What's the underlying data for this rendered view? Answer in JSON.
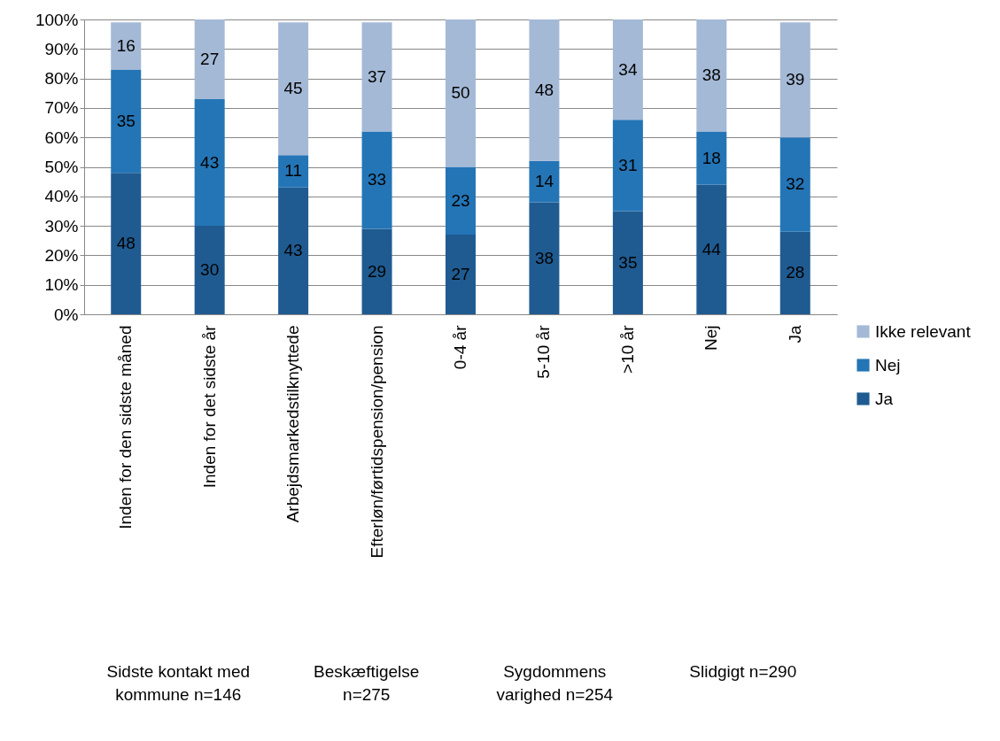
{
  "chart_data": {
    "type": "bar",
    "stacked": true,
    "data_labels": true,
    "grid": "y",
    "legend": "right",
    "categories": [
      "Inden for den sidste måned",
      "Inden for det  sidste år",
      "Arbejdsmarkedstilknyttede",
      "Efterløn/førtidspension/pension",
      "0-4 år",
      "5-10 år",
      ">10 år",
      "Nej",
      "Ja"
    ],
    "series": [
      {
        "name": "Ja",
        "color": "#1f5b91",
        "values": [
          48,
          30,
          43,
          29,
          27,
          38,
          35,
          44,
          28
        ]
      },
      {
        "name": "Nej",
        "color": "#2475b6",
        "values": [
          35,
          43,
          11,
          33,
          23,
          14,
          31,
          18,
          32
        ]
      },
      {
        "name": "Ikke relevant",
        "color": "#a4b9d6",
        "values": [
          16,
          27,
          45,
          37,
          50,
          48,
          34,
          38,
          39
        ]
      }
    ],
    "ylim": [
      0,
      100
    ],
    "yticks": [
      {
        "value": 0,
        "label": "0%"
      },
      {
        "value": 10,
        "label": "10%"
      },
      {
        "value": 20,
        "label": "20%"
      },
      {
        "value": 30,
        "label": "30%"
      },
      {
        "value": 40,
        "label": "40%"
      },
      {
        "value": 50,
        "label": "50%"
      },
      {
        "value": 60,
        "label": "60%"
      },
      {
        "value": 70,
        "label": "70%"
      },
      {
        "value": 80,
        "label": "80%"
      },
      {
        "value": 90,
        "label": "90%"
      },
      {
        "value": 100,
        "label": "100%"
      }
    ],
    "annotations": [
      "Sidste kontakt med kommune n=146",
      "Beskæftigelse n=275",
      "Sygdommens varighed n=254",
      "Slidgigt n=290"
    ]
  }
}
